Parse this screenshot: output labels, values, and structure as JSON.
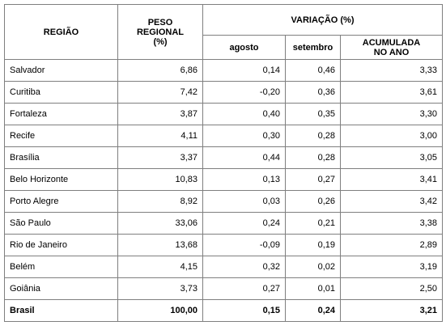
{
  "table": {
    "header": {
      "region": "REGIÃO",
      "weight": [
        "PESO",
        "REGIONAL",
        "(%)"
      ],
      "variation": "VARIAÇÃO (%)",
      "august": "agosto",
      "september": "setembro",
      "accumulated": [
        "ACUMULADA",
        "NO ANO"
      ]
    },
    "rows": [
      [
        "Salvador",
        "6,86",
        "0,14",
        "0,46",
        "3,33"
      ],
      [
        "Curitiba",
        "7,42",
        "-0,20",
        "0,36",
        "3,61"
      ],
      [
        "Fortaleza",
        "3,87",
        "0,40",
        "0,35",
        "3,30"
      ],
      [
        "Recife",
        "4,11",
        "0,30",
        "0,28",
        "3,00"
      ],
      [
        "Brasília",
        "3,37",
        "0,44",
        "0,28",
        "3,05"
      ],
      [
        "Belo Horizonte",
        "10,83",
        "0,13",
        "0,27",
        "3,41"
      ],
      [
        "Porto Alegre",
        "8,92",
        "0,03",
        "0,26",
        "3,42"
      ],
      [
        "São Paulo",
        "33,06",
        "0,24",
        "0,21",
        "3,38"
      ],
      [
        "Rio de Janeiro",
        "13,68",
        "-0,09",
        "0,19",
        "2,89"
      ],
      [
        "Belém",
        "4,15",
        "0,32",
        "0,02",
        "3,19"
      ],
      [
        "Goiânia",
        "3,73",
        "0,27",
        "0,01",
        "2,50"
      ],
      [
        "Brasil",
        "100,00",
        "0,15",
        "0,24",
        "3,21"
      ]
    ]
  }
}
